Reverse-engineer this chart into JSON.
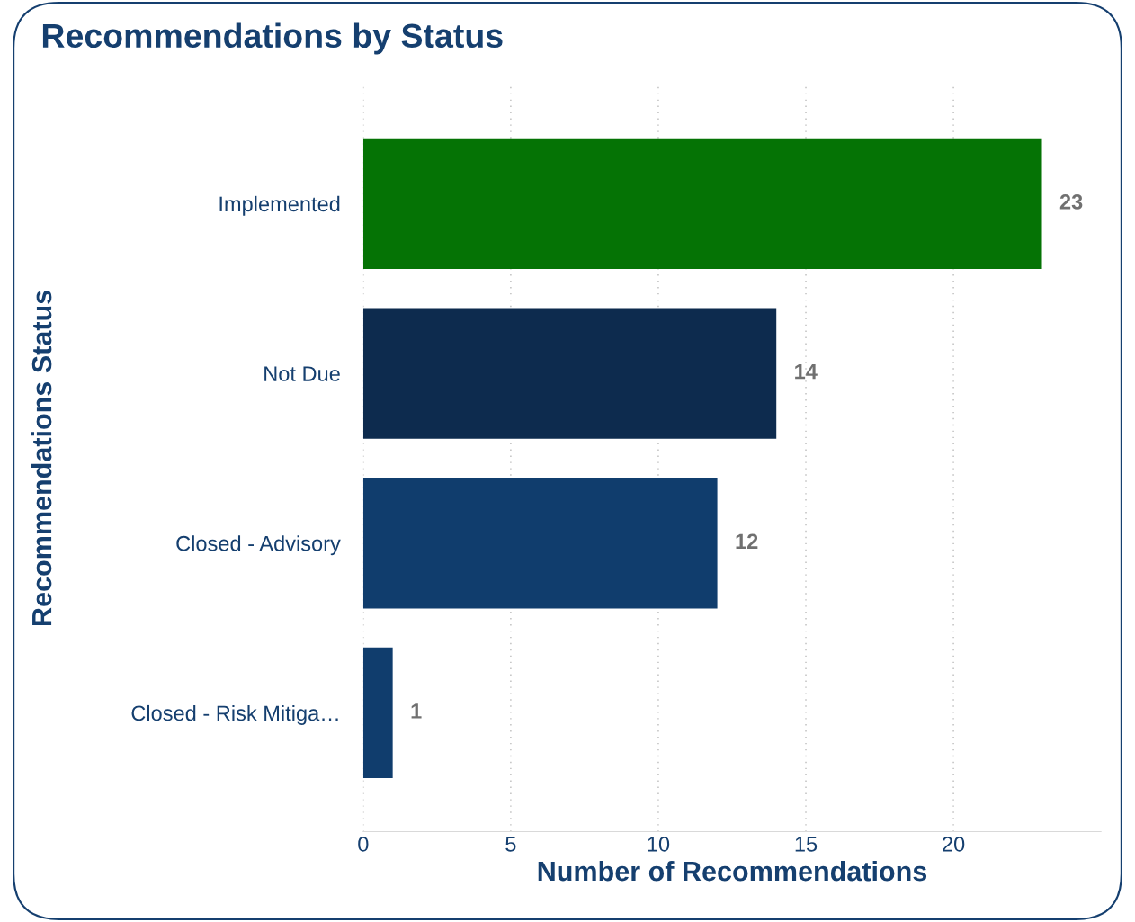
{
  "chart_data": {
    "type": "bar",
    "orientation": "horizontal",
    "title": "Recommendations by Status",
    "xlabel": "Number of Recommendations",
    "ylabel": "Recommendations Status",
    "categories": [
      "Implemented",
      "Not Due",
      "Closed - Advisory",
      "Closed - Risk Mitiga…"
    ],
    "values": [
      23,
      14,
      12,
      1
    ],
    "colors": [
      "#057305",
      "#0d2b4e",
      "#103d6d",
      "#103d6d"
    ],
    "xlim": [
      0,
      25
    ],
    "xticks": [
      0,
      5,
      10,
      15,
      20
    ],
    "grid": "x",
    "data_labels": true,
    "legend": false
  }
}
